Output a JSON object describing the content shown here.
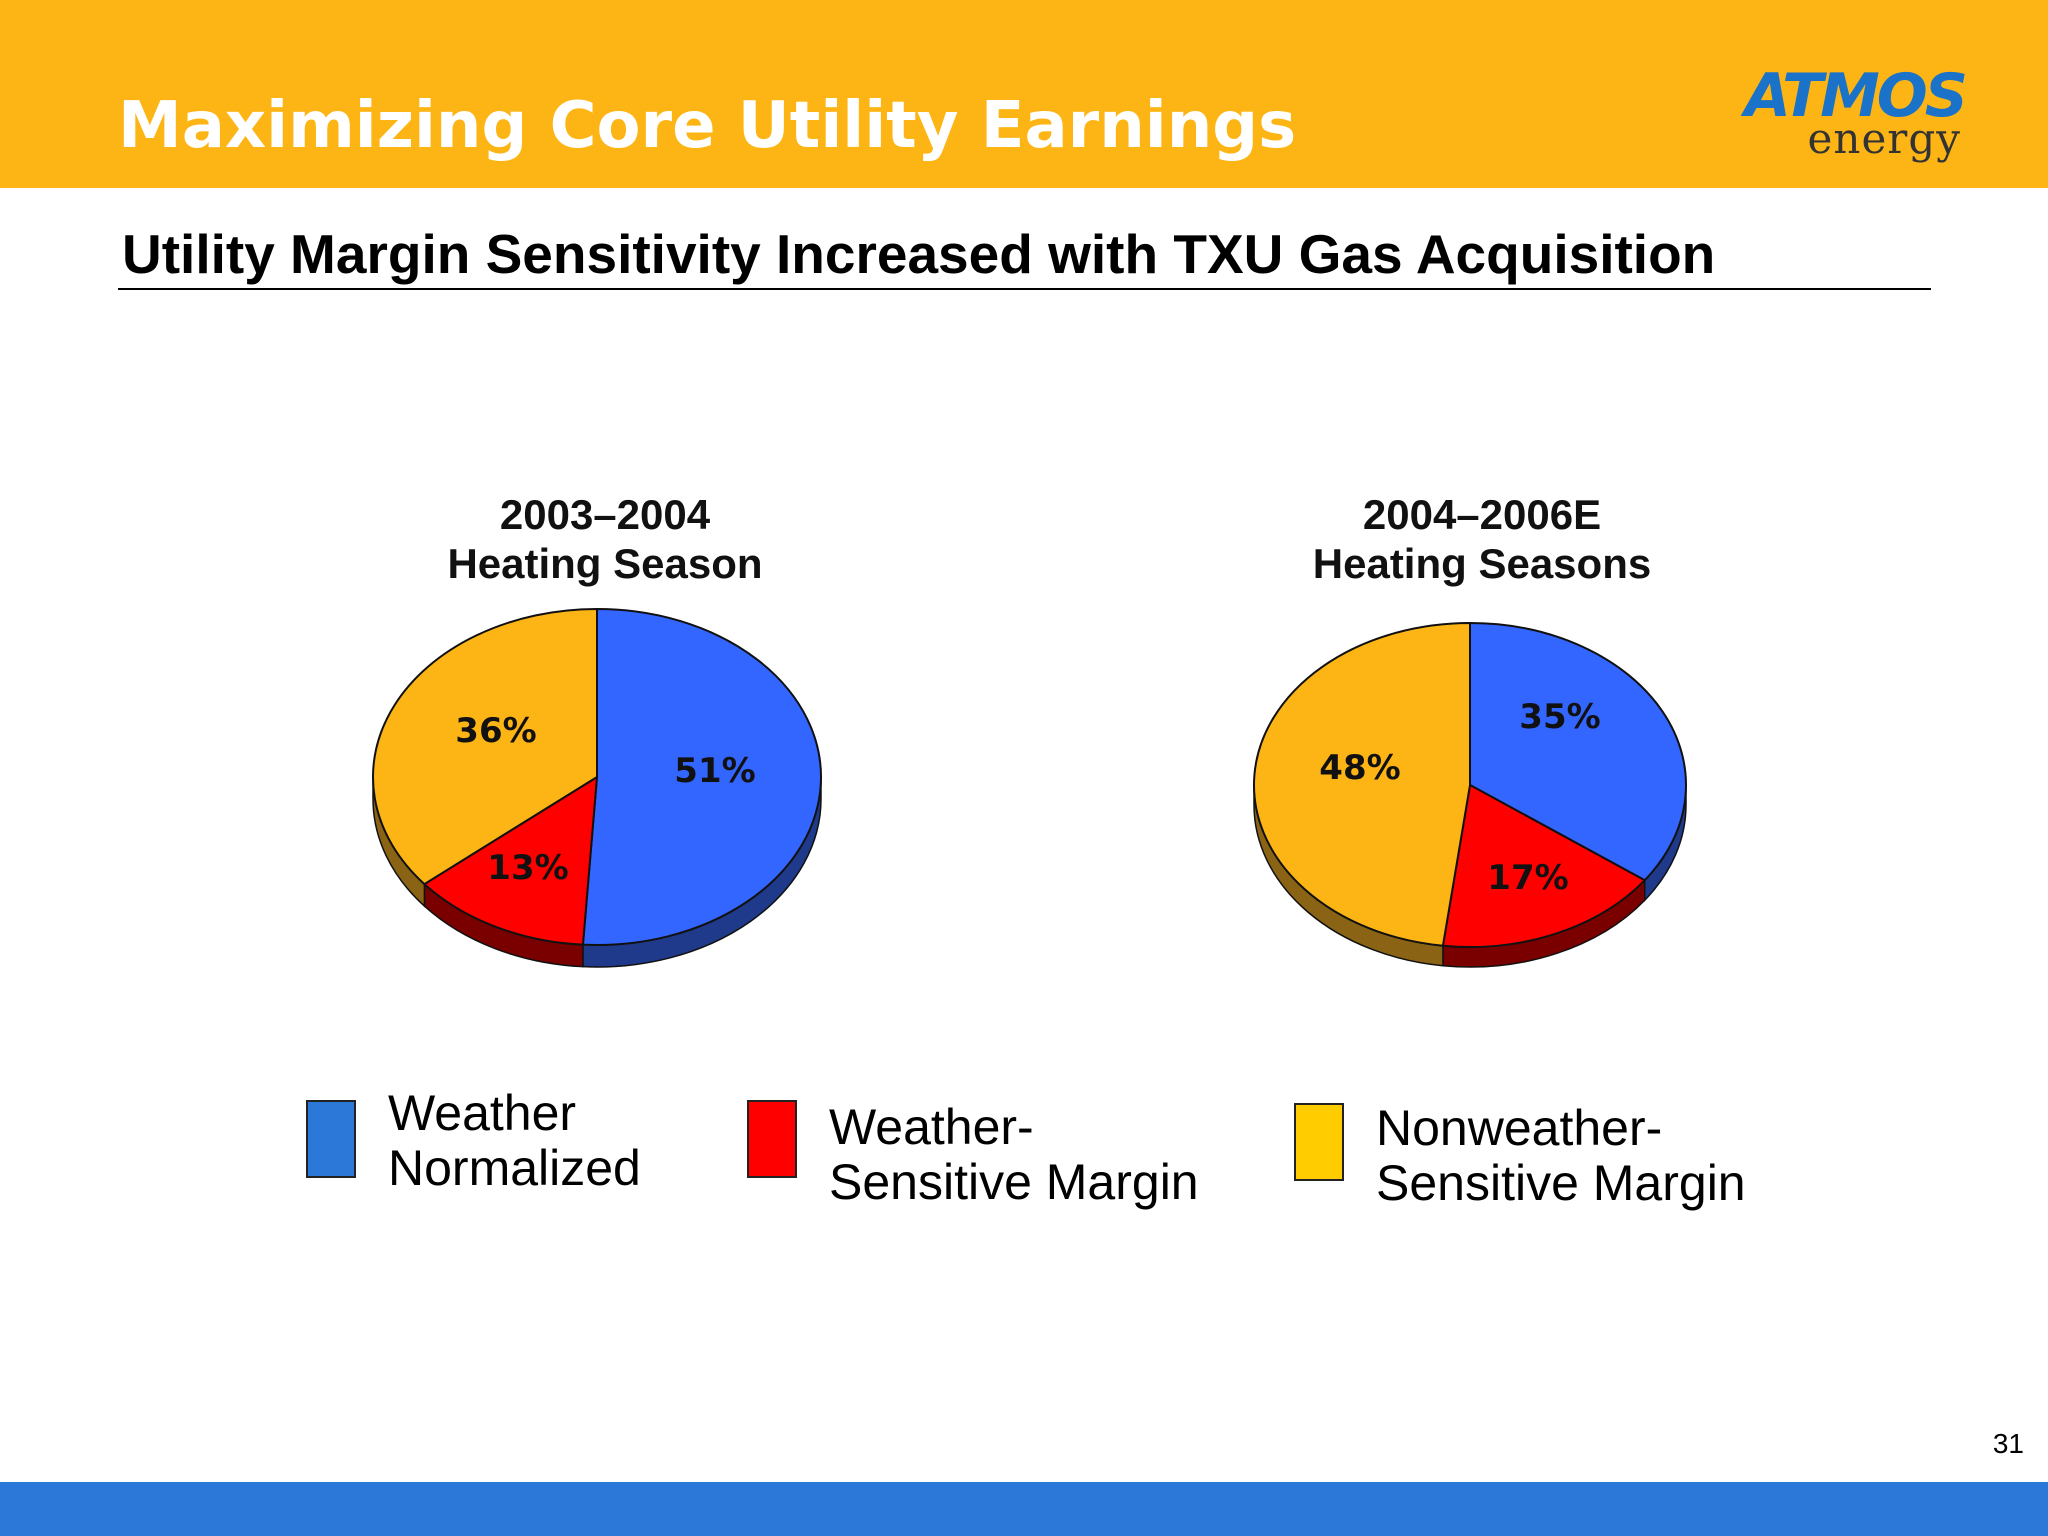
{
  "header": {
    "title": "Maximizing Core Utility Earnings",
    "logo": {
      "brand": "ATMOS",
      "sub": "energy"
    }
  },
  "subtitle": "Utility Margin Sensitivity Increased with TXU Gas Acquisition",
  "colors": {
    "header_band": "#fdb515",
    "footer_band": "#2b78d9",
    "weather_normalized": "#3366ff",
    "weather_normalized_side": "#1f3a8a",
    "weather_sensitive": "#ff0000",
    "weather_sensitive_side": "#7a0000",
    "nonweather_sensitive": "#fdb515",
    "nonweather_sensitive_side": "#8a6414",
    "legend_blue": "#2b78d9",
    "legend_red": "#ff0000",
    "legend_yellow": "#ffcc00"
  },
  "chart_data": [
    {
      "type": "pie",
      "title_line1": "2003–2004",
      "title_line2": "Heating Season",
      "slices": [
        {
          "key": "weather_normalized",
          "label": "Weather Normalized",
          "value": 51,
          "text": "51%"
        },
        {
          "key": "weather_sensitive",
          "label": "Weather-Sensitive Margin",
          "value": 13,
          "text": "13%"
        },
        {
          "key": "nonweather_sensitive",
          "label": "Nonweather-Sensitive Margin",
          "value": 36,
          "text": "36%"
        }
      ]
    },
    {
      "type": "pie",
      "title_line1": "2004–2006E",
      "title_line2": "Heating Seasons",
      "slices": [
        {
          "key": "weather_normalized",
          "label": "Weather Normalized",
          "value": 35,
          "text": "35%"
        },
        {
          "key": "weather_sensitive",
          "label": "Weather-Sensitive Margin",
          "value": 17,
          "text": "17%"
        },
        {
          "key": "nonweather_sensitive",
          "label": "Nonweather-Sensitive Margin",
          "value": 48,
          "text": "48%"
        }
      ]
    }
  ],
  "legend": [
    {
      "key": "weather_normalized",
      "line1": "Weather",
      "line2": "Normalized"
    },
    {
      "key": "weather_sensitive",
      "line1": "Weather-",
      "line2": "Sensitive Margin"
    },
    {
      "key": "nonweather_sensitive",
      "line1": "Nonweather-",
      "line2": "Sensitive Margin"
    }
  ],
  "page_number": "31"
}
